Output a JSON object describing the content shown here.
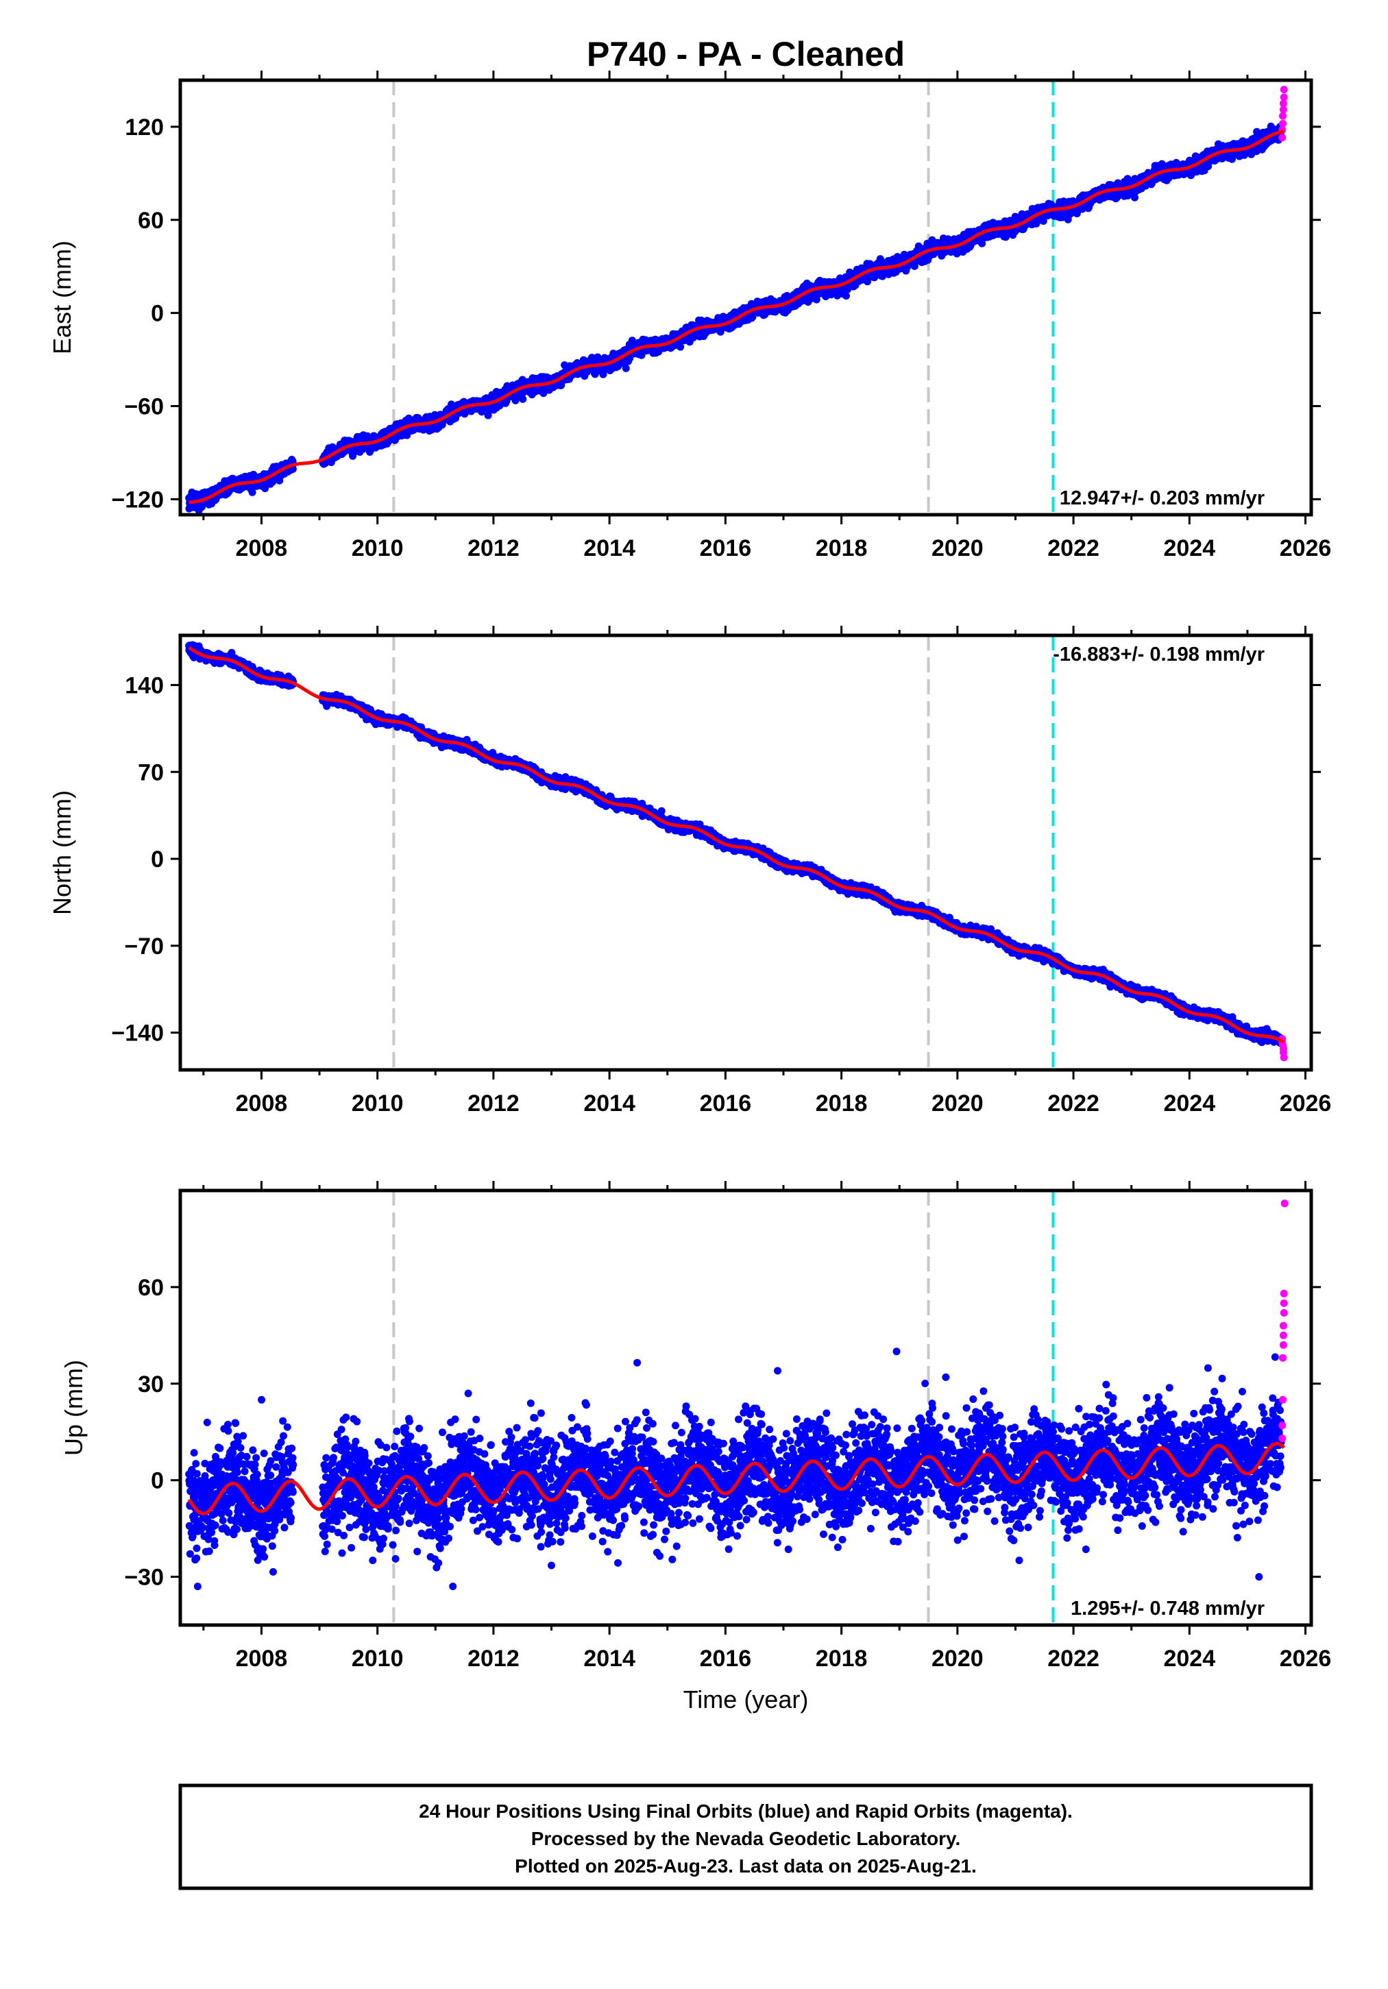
{
  "chart_data": [
    {
      "type": "scatter",
      "panel": "east",
      "title": "P740  - PA - Cleaned",
      "ylabel": "East (mm)",
      "xlim": [
        2006.6,
        2026.1
      ],
      "ylim": [
        -130,
        150
      ],
      "yticks": [
        -120,
        -60,
        0,
        60,
        120
      ],
      "ytick_labels": [
        "−120",
        "−60",
        "0",
        "60",
        "120"
      ],
      "xticks": [
        2008,
        2010,
        2012,
        2014,
        2016,
        2018,
        2020,
        2022,
        2024,
        2026
      ],
      "rate_text": "12.947+/- 0.203 mm/yr",
      "vlines": [
        {
          "x": 2010.28,
          "style": "gray-dashed"
        },
        {
          "x": 2019.5,
          "style": "gray-dashed"
        },
        {
          "x": 2021.65,
          "style": "cyan-dashed"
        }
      ],
      "series": [
        {
          "role": "final",
          "x_start": 2006.75,
          "x_end": 2025.58,
          "gaps": [
            [
              2008.55,
              2009.05
            ]
          ],
          "y_start": -122,
          "y_end": 115,
          "noise_sd": 2.2
        },
        {
          "role": "rapid",
          "x": [
            2025.6,
            2025.6,
            2025.61,
            2025.61,
            2025.62,
            2025.62,
            2025.63,
            2025.63
          ],
          "y": [
            113,
            118,
            122,
            127,
            131,
            135,
            139,
            144
          ]
        },
        {
          "role": "model",
          "x_start": 2006.75,
          "x_end": 2025.63,
          "y_start": -122,
          "y_end": 116,
          "seasonal_amp": 1.5
        }
      ]
    },
    {
      "type": "scatter",
      "panel": "north",
      "ylabel": "North (mm)",
      "xlim": [
        2006.6,
        2026.1
      ],
      "ylim": [
        -170,
        180
      ],
      "yticks": [
        -140,
        -70,
        0,
        70,
        140
      ],
      "ytick_labels": [
        "−140",
        "−70",
        "0",
        "70",
        "140"
      ],
      "xticks": [
        2008,
        2010,
        2012,
        2014,
        2016,
        2018,
        2020,
        2022,
        2024,
        2026
      ],
      "rate_text": "-16.883+/- 0.198 mm/yr",
      "vlines": [
        {
          "x": 2010.28,
          "style": "gray-dashed"
        },
        {
          "x": 2019.5,
          "style": "gray-dashed"
        },
        {
          "x": 2021.65,
          "style": "cyan-dashed"
        }
      ],
      "series": [
        {
          "role": "final",
          "x_start": 2006.75,
          "x_end": 2025.58,
          "gaps": [
            [
              2008.55,
              2009.05
            ]
          ],
          "y_start": 170,
          "y_end": -148,
          "noise_sd": 1.8
        },
        {
          "role": "rapid",
          "x": [
            2025.6,
            2025.6,
            2025.61,
            2025.62,
            2025.62,
            2025.63
          ],
          "y": [
            -145,
            -148,
            -150,
            -153,
            -156,
            -160
          ]
        },
        {
          "role": "model",
          "x_start": 2006.75,
          "x_end": 2025.63,
          "y_start": 170,
          "y_end": -149,
          "seasonal_amp": 2.0
        }
      ]
    },
    {
      "type": "scatter",
      "panel": "up",
      "ylabel": "Up (mm)",
      "xlabel": "Time (year)",
      "xlim": [
        2006.6,
        2026.1
      ],
      "ylim": [
        -45,
        90
      ],
      "yticks": [
        -30,
        0,
        30,
        60
      ],
      "ytick_labels": [
        "−30",
        "0",
        "30",
        "60"
      ],
      "xticks": [
        2008,
        2010,
        2012,
        2014,
        2016,
        2018,
        2020,
        2022,
        2024,
        2026
      ],
      "rate_text": "1.295+/- 0.748 mm/yr",
      "vlines": [
        {
          "x": 2010.28,
          "style": "gray-dashed"
        },
        {
          "x": 2019.5,
          "style": "gray-dashed"
        },
        {
          "x": 2021.65,
          "style": "cyan-dashed"
        }
      ],
      "series": [
        {
          "role": "final",
          "x_start": 2006.75,
          "x_end": 2025.58,
          "gaps": [
            [
              2008.55,
              2009.05
            ]
          ],
          "y_start": -5,
          "y_end": 7,
          "noise_sd": 7.5,
          "outliers": [
            [
              2008.0,
              25
            ],
            [
              2016.9,
              34
            ],
            [
              2018.95,
              40
            ],
            [
              2019.8,
              32
            ],
            [
              2006.9,
              -33
            ],
            [
              2011.3,
              -33
            ],
            [
              2025.2,
              -30
            ]
          ]
        },
        {
          "role": "rapid",
          "x": [
            2025.6,
            2025.6,
            2025.61,
            2025.61,
            2025.62,
            2025.62,
            2025.62,
            2025.63,
            2025.63,
            2025.63,
            2025.64
          ],
          "y": [
            13,
            17,
            25,
            38,
            42,
            45,
            48,
            52,
            55,
            58,
            86
          ]
        },
        {
          "role": "model",
          "x_start": 2006.75,
          "x_end": 2025.63,
          "y_start": -6,
          "y_end": 7,
          "seasonal_amp": 4.5
        }
      ]
    }
  ],
  "colors": {
    "final": "#0000ff",
    "rapid": "#ff00ff",
    "model": "#ff0000",
    "gray_line": "#c8c8c8",
    "cyan_line": "#00e6e6"
  },
  "footer": {
    "line1": "24 Hour Positions Using Final Orbits (blue) and Rapid Orbits (magenta).",
    "line2": "Processed by the Nevada Geodetic Laboratory.",
    "line3": "Plotted on 2025-Aug-23. Last data on 2025-Aug-21."
  }
}
